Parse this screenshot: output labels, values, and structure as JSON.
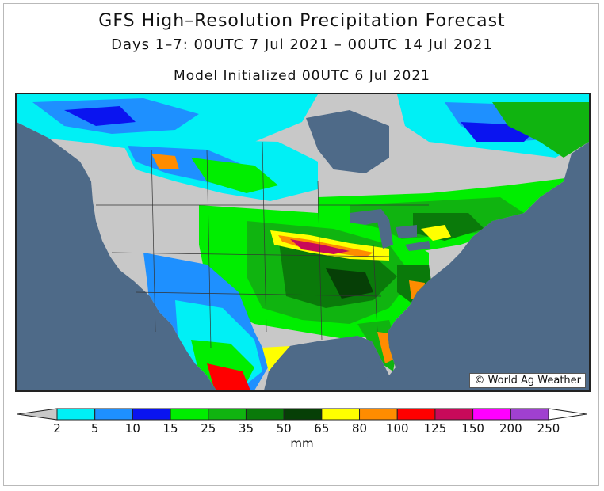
{
  "title": {
    "line1": "GFS High–Resolution Precipitation Forecast",
    "line2": "Days 1–7: 00UTC 7 Jul 2021 – 00UTC 14 Jul 2021",
    "line3": "Model Initialized 00UTC 6 Jul 2021"
  },
  "credit": "World Ag Weather",
  "legend": {
    "unit": "mm",
    "ticks": [
      "2",
      "5",
      "10",
      "15",
      "25",
      "35",
      "50",
      "65",
      "80",
      "100",
      "125",
      "150",
      "200",
      "250"
    ],
    "colors": [
      "#00f0f5",
      "#1e90ff",
      "#0a14f0",
      "#00ee00",
      "#10b410",
      "#0a7a0a",
      "#063f06",
      "#ffff00",
      "#ff8c00",
      "#ff0000",
      "#c80a5a",
      "#ff00ff",
      "#a040d0"
    ]
  },
  "map": {
    "ocean_color": "#4e6a88",
    "land_dry_color": "#c8c8c8",
    "region": "North America"
  }
}
